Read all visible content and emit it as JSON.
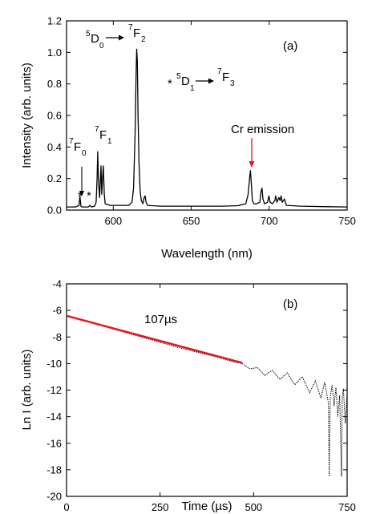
{
  "chart_data": [
    {
      "panel": "(a)",
      "type": "line",
      "xlabel": "Wavelength (nm)",
      "ylabel": "Intensity (arb. units)",
      "xlim": [
        570,
        750
      ],
      "ylim": [
        0.0,
        1.2
      ],
      "xticks": [
        600,
        650,
        700,
        750
      ],
      "yticks": [
        0.0,
        0.2,
        0.4,
        0.6,
        0.8,
        1.0,
        1.2
      ],
      "xtick_labels": [
        "600",
        "650",
        "700",
        "750"
      ],
      "ytick_labels": [
        "0.0",
        "0.2",
        "0.4",
        "0.6",
        "0.8",
        "1.0",
        "1.2"
      ],
      "grid": false,
      "series": [
        {
          "color": "#000000",
          "x": [
            570,
            576,
            578,
            578.6,
            579.2,
            580,
            584,
            585,
            586,
            588,
            589,
            589.6,
            590,
            590.4,
            591.2,
            591.6,
            592.1,
            592.6,
            593.1,
            593.6,
            594.2,
            594.8,
            598,
            606,
            610,
            612,
            613,
            614,
            614.6,
            615,
            615.4,
            615.9,
            616.5,
            617.2,
            618,
            619,
            619.8,
            620.4,
            621,
            622,
            630,
            650,
            670,
            680,
            685,
            686.5,
            687.6,
            688,
            688.6,
            689.2,
            690.2,
            692,
            694,
            694.8,
            695.4,
            696,
            697,
            699,
            699.8,
            700.6,
            702,
            703.6,
            704.2,
            705,
            706.2,
            707,
            707.6,
            708.4,
            709.8,
            711,
            720,
            735,
            750
          ],
          "y": [
            0.02,
            0.02,
            0.03,
            0.09,
            0.025,
            0.02,
            0.02,
            0.03,
            0.02,
            0.025,
            0.05,
            0.2,
            0.37,
            0.2,
            0.08,
            0.17,
            0.28,
            0.1,
            0.2,
            0.28,
            0.1,
            0.04,
            0.03,
            0.03,
            0.03,
            0.05,
            0.14,
            0.5,
            0.85,
            1.02,
            0.95,
            0.6,
            0.3,
            0.12,
            0.06,
            0.04,
            0.08,
            0.09,
            0.05,
            0.03,
            0.025,
            0.025,
            0.025,
            0.028,
            0.04,
            0.1,
            0.22,
            0.25,
            0.16,
            0.06,
            0.04,
            0.04,
            0.05,
            0.12,
            0.14,
            0.07,
            0.04,
            0.05,
            0.09,
            0.05,
            0.04,
            0.06,
            0.09,
            0.05,
            0.08,
            0.06,
            0.09,
            0.05,
            0.07,
            0.03,
            0.025,
            0.022,
            0.02
          ]
        }
      ],
      "annotations": {
        "panel_label": "(a)",
        "D0_to_F2": {
          "from": "D",
          "from_sup": "5",
          "from_sub": "0",
          "to": "F",
          "to_sup": "7",
          "to_sub": "2"
        },
        "star_D1_to_F3": {
          "star": "*",
          "from": "D",
          "from_sup": "5",
          "from_sub": "1",
          "to": "F",
          "to_sup": "7",
          "to_sub": "3"
        },
        "F0": {
          "base": "F",
          "sup": "7",
          "sub": "0"
        },
        "F1": {
          "base": "F",
          "sup": "7",
          "sub": "1"
        },
        "stars": [
          "*",
          "*"
        ],
        "cr_emission": "Cr emission"
      }
    },
    {
      "panel": "(b)",
      "type": "line",
      "xlabel": "Time (µs)",
      "ylabel": "Ln I (arb. units)",
      "xlim": [
        0,
        750
      ],
      "ylim": [
        -20,
        -4
      ],
      "xticks": [
        0,
        250,
        500,
        750
      ],
      "yticks": [
        -4,
        -6,
        -8,
        -10,
        -12,
        -14,
        -16,
        -18,
        -20
      ],
      "xtick_labels": [
        "0",
        "250",
        "500",
        "750"
      ],
      "ytick_labels": [
        "-4",
        "-6",
        "-8",
        "-10",
        "-12",
        "-14",
        "-16",
        "-18",
        "-20"
      ],
      "grid": false,
      "series": [
        {
          "style": "dotted",
          "color": "#000000",
          "x": [
            0,
            100,
            200,
            300,
            400,
            450,
            470,
            490,
            510,
            530,
            550,
            570,
            590,
            610,
            630,
            650,
            665,
            680,
            690,
            700,
            702,
            705,
            710,
            715,
            720,
            725,
            730,
            735,
            737,
            740,
            745,
            750
          ],
          "y": [
            -6.4,
            -7.2,
            -8.0,
            -8.8,
            -9.5,
            -9.9,
            -10.0,
            -10.4,
            -10.3,
            -10.9,
            -10.5,
            -11.2,
            -10.7,
            -11.6,
            -11.0,
            -12.2,
            -11.3,
            -12.6,
            -11.4,
            -13.0,
            -18.5,
            -12.5,
            -11.6,
            -13.2,
            -11.8,
            -14.0,
            -12.4,
            -18.5,
            -12.6,
            -11.9,
            -14.5,
            -12.2
          ]
        },
        {
          "style": "fit",
          "color": "#e8141b",
          "x": [
            0,
            470
          ],
          "y": [
            -6.4,
            -9.95
          ]
        }
      ],
      "annotations": {
        "panel_label": "(b)",
        "fit_label": "107µs"
      }
    }
  ]
}
